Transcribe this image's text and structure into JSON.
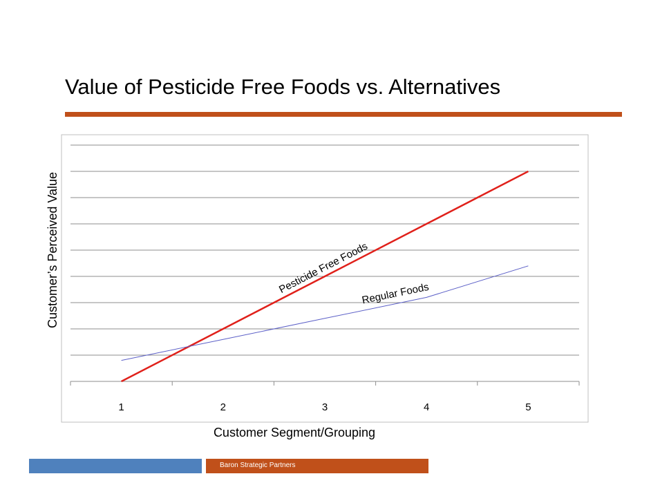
{
  "slide": {
    "title": "Value of Pesticide Free Foods vs. Alternatives",
    "footer": "Baron Strategic Partners",
    "accent_color": "#C0501A",
    "footer_blue": "#4F81BD"
  },
  "chart_data": {
    "type": "line",
    "title": "",
    "xlabel": "Customer Segment/Grouping",
    "ylabel": "Customer’s Perceived Value",
    "categories": [
      "1",
      "2",
      "3",
      "4",
      "5"
    ],
    "ylim": [
      0,
      9
    ],
    "grid": true,
    "series": [
      {
        "name": "Pesticide Free Foods",
        "values": [
          0,
          2.0,
          4.0,
          6.0,
          8.0
        ],
        "color": "#E0201A",
        "label": "Pesticide Free Foods"
      },
      {
        "name": "Regular Foods",
        "values": [
          0.8,
          1.6,
          2.4,
          3.2,
          4.4
        ],
        "color": "#5B5FC7",
        "label": "Regular Foods"
      }
    ]
  }
}
